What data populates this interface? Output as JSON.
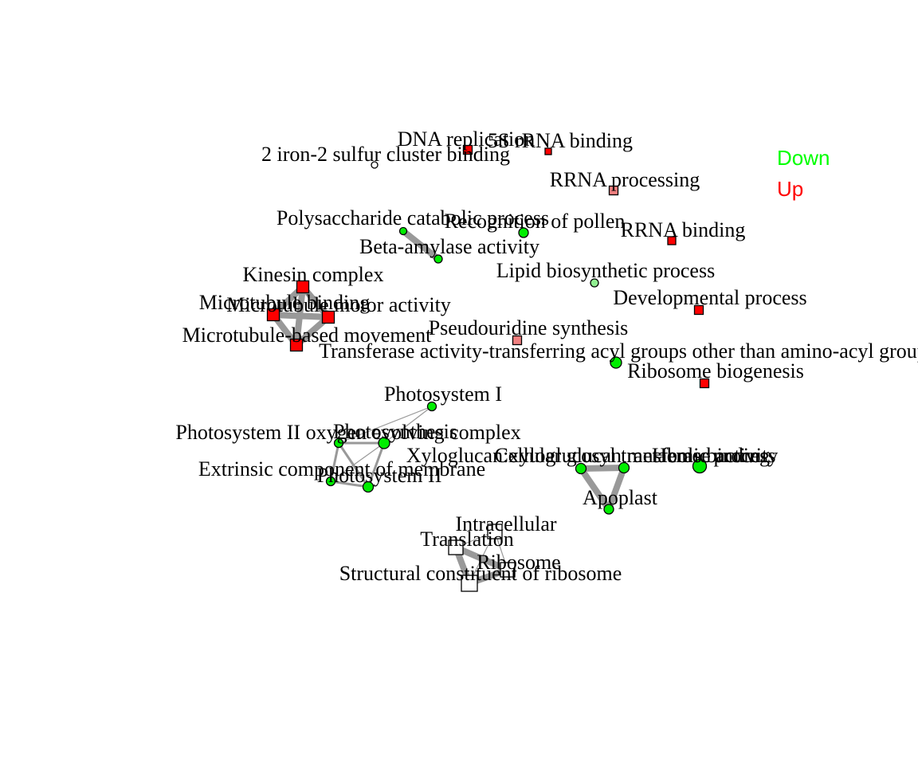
{
  "legend": {
    "items": [
      {
        "label": "Down",
        "color": "#00ff00"
      },
      {
        "label": "Up",
        "color": "#ff0000"
      }
    ]
  },
  "colors": {
    "down": "#00ee00",
    "down_light": "#90ee90",
    "up": "#ff0000",
    "up_light": "#f08080",
    "neutral": "#ffffff",
    "edge": "#999999",
    "node_border": "#000000"
  },
  "nodes": [
    {
      "id": "dna-replication",
      "label": "DNA replication",
      "shape": "square",
      "color": "up"
    },
    {
      "id": "5s-rrna",
      "label": "5S rRNA binding",
      "shape": "square",
      "color": "up"
    },
    {
      "id": "iron-sulfur",
      "label": "2 iron-2 sulfur cluster binding",
      "shape": "circle",
      "color": "neutral"
    },
    {
      "id": "rrna-processing",
      "label": "RRNA processing",
      "shape": "square",
      "color": "up_light"
    },
    {
      "id": "polysaccharide-catabolic",
      "label": "Polysaccharide catabolic process",
      "shape": "circle",
      "color": "down"
    },
    {
      "id": "recognition-pollen",
      "label": "Recognition of pollen",
      "shape": "circle",
      "color": "down"
    },
    {
      "id": "rrna-binding",
      "label": "RRNA binding",
      "shape": "square",
      "color": "up"
    },
    {
      "id": "beta-amylase",
      "label": "Beta-amylase activity",
      "shape": "circle",
      "color": "down"
    },
    {
      "id": "lipid-biosynthetic",
      "label": "Lipid biosynthetic process",
      "shape": "circle",
      "color": "down_light"
    },
    {
      "id": "kinesin-complex",
      "label": "Kinesin complex",
      "shape": "square",
      "color": "up"
    },
    {
      "id": "developmental-process",
      "label": "Developmental process",
      "shape": "square",
      "color": "up"
    },
    {
      "id": "microtubule-binding",
      "label": "Microtubule binding",
      "shape": "square",
      "color": "up"
    },
    {
      "id": "microtubule-motor",
      "label": "Microtubule motor activity",
      "shape": "square",
      "color": "up"
    },
    {
      "id": "pseudouridine",
      "label": "Pseudouridine synthesis",
      "shape": "square",
      "color": "up_light"
    },
    {
      "id": "microtubule-movement",
      "label": "Microtubule-based movement",
      "shape": "square",
      "color": "up"
    },
    {
      "id": "transferase-acyl",
      "label": "Transferase activity-transferring acyl groups other than amino-acyl groups",
      "shape": "circle",
      "color": "down"
    },
    {
      "id": "ribosome-biogenesis",
      "label": "Ribosome biogenesis",
      "shape": "square",
      "color": "up"
    },
    {
      "id": "photosystem-i",
      "label": "Photosystem I",
      "shape": "circle",
      "color": "down"
    },
    {
      "id": "psii-oxygen-evolving",
      "label": "Photosystem II oxygen evolving complex",
      "shape": "circle",
      "color": "down"
    },
    {
      "id": "photosynthesis",
      "label": "Photosynthesis",
      "shape": "circle",
      "color": "down"
    },
    {
      "id": "xyloglucan",
      "label": "Xyloglucan:xyloglucosyl transferase activity",
      "shape": "circle",
      "color": "down"
    },
    {
      "id": "cellular-glucan",
      "label": "Cellular glucan metabolic process",
      "shape": "circle",
      "color": "down"
    },
    {
      "id": "heme-binding",
      "label": "Heme binding",
      "shape": "circle",
      "color": "down"
    },
    {
      "id": "extrinsic-membrane",
      "label": "Extrinsic component of membrane",
      "shape": "circle",
      "color": "down"
    },
    {
      "id": "photosystem-ii",
      "label": "Photosystem II",
      "shape": "circle",
      "color": "down"
    },
    {
      "id": "apoplast",
      "label": "Apoplast",
      "shape": "circle",
      "color": "down"
    },
    {
      "id": "intracellular",
      "label": "Intracellular",
      "shape": "square",
      "color": "neutral"
    },
    {
      "id": "translation",
      "label": "Translation",
      "shape": "square",
      "color": "neutral"
    },
    {
      "id": "ribosome",
      "label": "Ribosome",
      "shape": "square",
      "color": "neutral"
    },
    {
      "id": "structural-ribosome",
      "label": "Structural constituent of ribosome",
      "shape": "square",
      "color": "neutral"
    }
  ],
  "edges": [
    {
      "source": "polysaccharide-catabolic",
      "target": "beta-amylase",
      "weight": "heavy"
    },
    {
      "source": "kinesin-complex",
      "target": "microtubule-binding",
      "weight": "heavy"
    },
    {
      "source": "kinesin-complex",
      "target": "microtubule-motor",
      "weight": "heavy"
    },
    {
      "source": "kinesin-complex",
      "target": "microtubule-movement",
      "weight": "heavy"
    },
    {
      "source": "microtubule-binding",
      "target": "microtubule-motor",
      "weight": "heavy"
    },
    {
      "source": "microtubule-binding",
      "target": "microtubule-movement",
      "weight": "heavy"
    },
    {
      "source": "microtubule-motor",
      "target": "microtubule-movement",
      "weight": "heavy"
    },
    {
      "source": "photosystem-i",
      "target": "photosynthesis",
      "weight": "thin"
    },
    {
      "source": "photosystem-i",
      "target": "psii-oxygen-evolving",
      "weight": "thin"
    },
    {
      "source": "psii-oxygen-evolving",
      "target": "photosynthesis",
      "weight": "medium"
    },
    {
      "source": "psii-oxygen-evolving",
      "target": "extrinsic-membrane",
      "weight": "medium"
    },
    {
      "source": "psii-oxygen-evolving",
      "target": "photosystem-ii",
      "weight": "medium"
    },
    {
      "source": "photosynthesis",
      "target": "photosystem-ii",
      "weight": "medium"
    },
    {
      "source": "photosynthesis",
      "target": "extrinsic-membrane",
      "weight": "thin"
    },
    {
      "source": "extrinsic-membrane",
      "target": "photosystem-ii",
      "weight": "medium"
    },
    {
      "source": "xyloglucan",
      "target": "cellular-glucan",
      "weight": "heavy"
    },
    {
      "source": "xyloglucan",
      "target": "apoplast",
      "weight": "heavy"
    },
    {
      "source": "cellular-glucan",
      "target": "apoplast",
      "weight": "heavy"
    },
    {
      "source": "translation",
      "target": "ribosome",
      "weight": "heavy"
    },
    {
      "source": "translation",
      "target": "structural-ribosome",
      "weight": "heavy"
    },
    {
      "source": "ribosome",
      "target": "structural-ribosome",
      "weight": "heavy"
    },
    {
      "source": "intracellular",
      "target": "translation",
      "weight": "thin"
    },
    {
      "source": "intracellular",
      "target": "ribosome",
      "weight": "thin"
    },
    {
      "source": "intracellular",
      "target": "structural-ribosome",
      "weight": "thin"
    }
  ]
}
